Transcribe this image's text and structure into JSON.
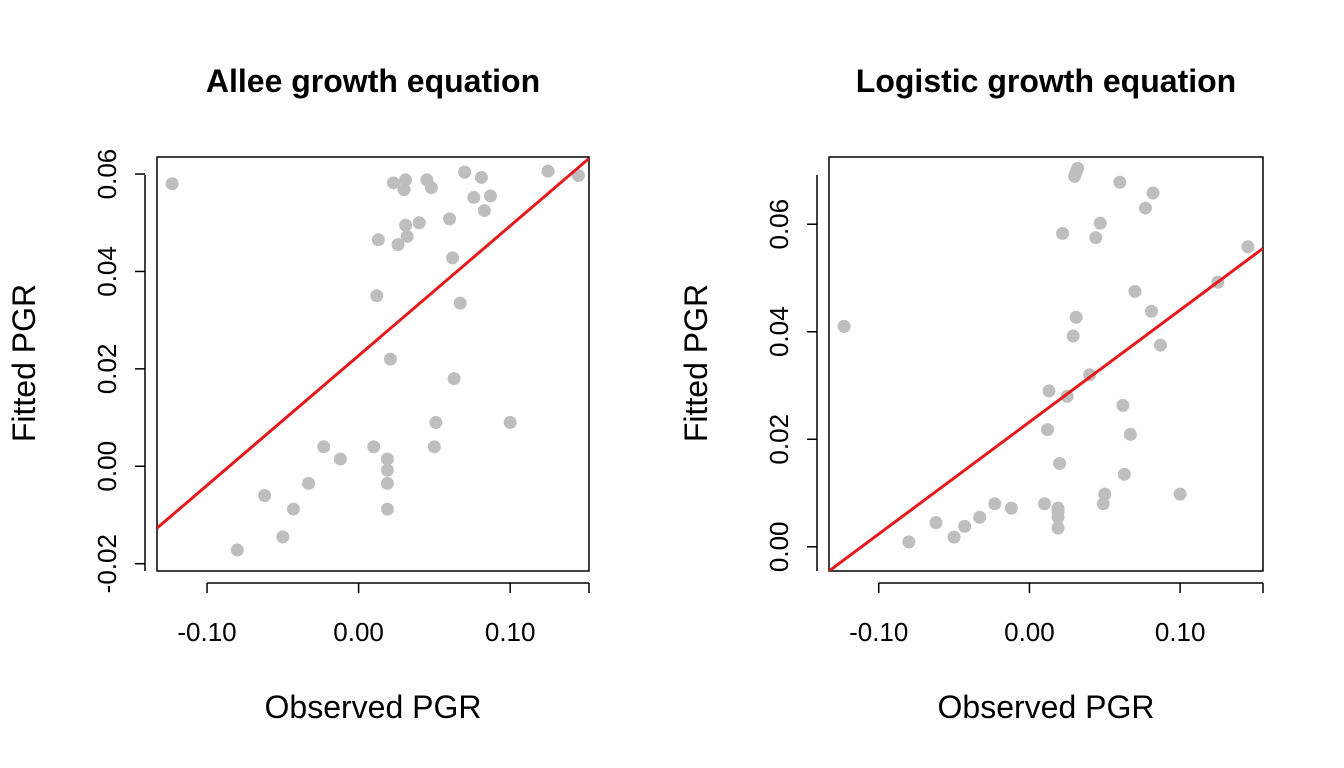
{
  "chart_data": [
    {
      "type": "scatter",
      "title": "Allee growth equation",
      "xlabel": "Observed PGR",
      "ylabel": "Fitted PGR",
      "xlim": [
        -0.133,
        0.152
      ],
      "ylim": [
        -0.0215,
        0.0635
      ],
      "xticks": [
        -0.1,
        0.0,
        0.1
      ],
      "xtick_labels": [
        "-0.10",
        "0.00",
        "0.10"
      ],
      "yticks": [
        -0.02,
        0.0,
        0.02,
        0.04,
        0.06
      ],
      "ytick_labels": [
        "-0.02",
        "0.00",
        "0.02",
        "0.04",
        "0.06"
      ],
      "point_color": "#BEBEBE",
      "line_color": "#E41A1C",
      "fit_line": [
        [
          -0.133,
          -0.0127
        ],
        [
          0.152,
          0.0632
        ]
      ],
      "series": [
        {
          "points": [
            [
              -0.123,
              0.058
            ],
            [
              -0.08,
              -0.0172
            ],
            [
              -0.062,
              -0.006
            ],
            [
              -0.05,
              -0.0145
            ],
            [
              -0.043,
              -0.0088
            ],
            [
              -0.033,
              -0.0035
            ],
            [
              -0.023,
              0.004
            ],
            [
              -0.012,
              0.0015
            ],
            [
              0.01,
              0.004
            ],
            [
              0.012,
              0.035
            ],
            [
              0.013,
              0.0465
            ],
            [
              0.019,
              0.0015
            ],
            [
              0.019,
              -0.0008
            ],
            [
              0.019,
              -0.0035
            ],
            [
              0.019,
              -0.0088
            ],
            [
              0.021,
              0.022
            ],
            [
              0.023,
              0.0582
            ],
            [
              0.026,
              0.0455
            ],
            [
              0.03,
              0.0568
            ],
            [
              0.031,
              0.0495
            ],
            [
              0.031,
              0.0588
            ],
            [
              0.032,
              0.0472
            ],
            [
              0.04,
              0.05
            ],
            [
              0.045,
              0.0588
            ],
            [
              0.048,
              0.0572
            ],
            [
              0.05,
              0.004
            ],
            [
              0.051,
              0.009
            ],
            [
              0.06,
              0.0508
            ],
            [
              0.062,
              0.0428
            ],
            [
              0.063,
              0.018
            ],
            [
              0.067,
              0.0335
            ],
            [
              0.07,
              0.0604
            ],
            [
              0.076,
              0.0552
            ],
            [
              0.081,
              0.0593
            ],
            [
              0.083,
              0.0525
            ],
            [
              0.087,
              0.0555
            ],
            [
              0.1,
              0.009
            ],
            [
              0.125,
              0.0606
            ],
            [
              0.145,
              0.0597
            ]
          ]
        }
      ]
    },
    {
      "type": "scatter",
      "title": "Logistic growth equation",
      "xlabel": "Observed PGR",
      "ylabel": "Fitted PGR",
      "xlim": [
        -0.133,
        0.155
      ],
      "ylim": [
        -0.0045,
        0.0725
      ],
      "xticks": [
        -0.1,
        0.0,
        0.1
      ],
      "xtick_labels": [
        "-0.10",
        "0.00",
        "0.10"
      ],
      "yticks": [
        0.0,
        0.02,
        0.04,
        0.06
      ],
      "ytick_labels": [
        "0.00",
        "0.02",
        "0.04",
        "0.06"
      ],
      "point_color": "#BEBEBE",
      "line_color": "#E41A1C",
      "fit_line": [
        [
          -0.133,
          -0.0045
        ],
        [
          0.155,
          0.0555
        ]
      ],
      "series": [
        {
          "points": [
            [
              -0.123,
              0.041
            ],
            [
              -0.08,
              0.0009
            ],
            [
              -0.062,
              0.0045
            ],
            [
              -0.05,
              0.0018
            ],
            [
              -0.043,
              0.0038
            ],
            [
              -0.033,
              0.0055
            ],
            [
              -0.023,
              0.008
            ],
            [
              -0.012,
              0.0072
            ],
            [
              0.01,
              0.008
            ],
            [
              0.012,
              0.0218
            ],
            [
              0.013,
              0.029
            ],
            [
              0.019,
              0.0035
            ],
            [
              0.019,
              0.0055
            ],
            [
              0.019,
              0.0065
            ],
            [
              0.019,
              0.0072
            ],
            [
              0.02,
              0.0155
            ],
            [
              0.022,
              0.0583
            ],
            [
              0.025,
              0.028
            ],
            [
              0.029,
              0.0392
            ],
            [
              0.03,
              0.0689
            ],
            [
              0.031,
              0.0697
            ],
            [
              0.031,
              0.0427
            ],
            [
              0.032,
              0.0704
            ],
            [
              0.04,
              0.032
            ],
            [
              0.044,
              0.0575
            ],
            [
              0.047,
              0.0602
            ],
            [
              0.049,
              0.008
            ],
            [
              0.05,
              0.0098
            ],
            [
              0.06,
              0.0678
            ],
            [
              0.062,
              0.0263
            ],
            [
              0.063,
              0.0135
            ],
            [
              0.067,
              0.0209
            ],
            [
              0.07,
              0.0475
            ],
            [
              0.077,
              0.063
            ],
            [
              0.081,
              0.0438
            ],
            [
              0.082,
              0.0658
            ],
            [
              0.087,
              0.0375
            ],
            [
              0.1,
              0.0098
            ],
            [
              0.125,
              0.0492
            ],
            [
              0.145,
              0.0558
            ]
          ]
        }
      ]
    }
  ]
}
